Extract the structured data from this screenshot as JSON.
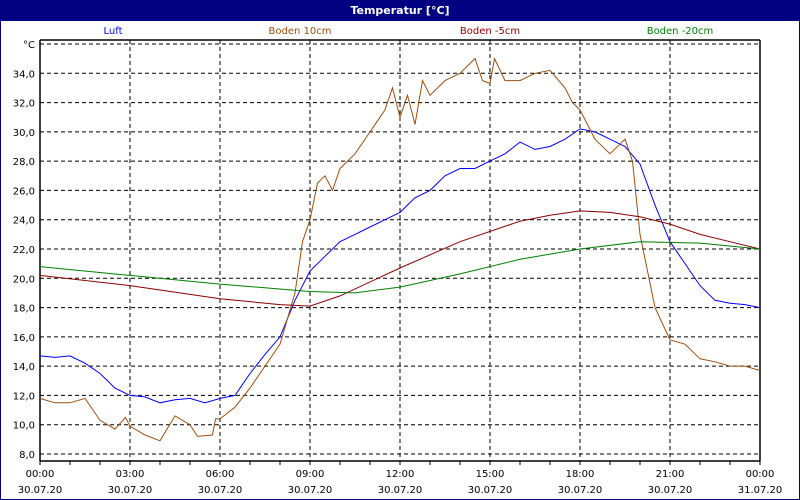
{
  "window": {
    "title": "Temperatur [°C]"
  },
  "chart_data": {
    "type": "line",
    "title": "Temperatur [°C]",
    "ylabel": "°C",
    "ylim": [
      8,
      36
    ],
    "yticks": [
      "8,0",
      "10,0",
      "12,0",
      "14,0",
      "16,0",
      "18,0",
      "20,0",
      "22,0",
      "24,0",
      "26,0",
      "28,0",
      "30,0",
      "32,0",
      "34,0"
    ],
    "xlim_hours": [
      0,
      24
    ],
    "xticks": [
      {
        "time": "00:00",
        "date": "30.07.20"
      },
      {
        "time": "03:00",
        "date": "30.07.20"
      },
      {
        "time": "06:00",
        "date": "30.07.20"
      },
      {
        "time": "09:00",
        "date": "30.07.20"
      },
      {
        "time": "12:00",
        "date": "30.07.20"
      },
      {
        "time": "15:00",
        "date": "30.07.20"
      },
      {
        "time": "18:00",
        "date": "30.07.20"
      },
      {
        "time": "21:00",
        "date": "30.07.20"
      },
      {
        "time": "00:00",
        "date": "31.07.20"
      }
    ],
    "grid": true,
    "legend": "top",
    "series": [
      {
        "name": "Luft",
        "color": "#0000ff",
        "points": [
          [
            0,
            14.7
          ],
          [
            0.5,
            14.6
          ],
          [
            1,
            14.7
          ],
          [
            1.5,
            14.2
          ],
          [
            2,
            13.5
          ],
          [
            2.5,
            12.5
          ],
          [
            3,
            12.0
          ],
          [
            3.5,
            11.9
          ],
          [
            4,
            11.5
          ],
          [
            4.5,
            11.7
          ],
          [
            5,
            11.8
          ],
          [
            5.5,
            11.5
          ],
          [
            6,
            11.8
          ],
          [
            6.5,
            12.0
          ],
          [
            7,
            13.5
          ],
          [
            7.5,
            14.8
          ],
          [
            8,
            16.0
          ],
          [
            8.5,
            18.5
          ],
          [
            9,
            20.5
          ],
          [
            9.5,
            21.5
          ],
          [
            10,
            22.5
          ],
          [
            10.5,
            23.0
          ],
          [
            11,
            23.5
          ],
          [
            11.5,
            24.0
          ],
          [
            12,
            24.5
          ],
          [
            12.5,
            25.5
          ],
          [
            13,
            26.0
          ],
          [
            13.5,
            27.0
          ],
          [
            14,
            27.5
          ],
          [
            14.5,
            27.5
          ],
          [
            15,
            28.0
          ],
          [
            15.5,
            28.5
          ],
          [
            16,
            29.3
          ],
          [
            16.5,
            28.8
          ],
          [
            17,
            29.0
          ],
          [
            17.5,
            29.5
          ],
          [
            18,
            30.2
          ],
          [
            18.5,
            30.0
          ],
          [
            19,
            29.5
          ],
          [
            19.5,
            29.0
          ],
          [
            20,
            27.8
          ],
          [
            20.5,
            25.0
          ],
          [
            21,
            22.5
          ],
          [
            21.5,
            21.0
          ],
          [
            22,
            19.5
          ],
          [
            22.5,
            18.5
          ],
          [
            23,
            18.3
          ],
          [
            23.5,
            18.2
          ],
          [
            24,
            18.0
          ]
        ]
      },
      {
        "name": "Boden 10cm",
        "color": "#9b4f0f",
        "points": [
          [
            0,
            11.8
          ],
          [
            0.5,
            11.5
          ],
          [
            1,
            11.5
          ],
          [
            1.5,
            11.8
          ],
          [
            2,
            10.3
          ],
          [
            2.5,
            9.7
          ],
          [
            2.85,
            10.5
          ],
          [
            3,
            9.9
          ],
          [
            3.5,
            9.3
          ],
          [
            4,
            8.9
          ],
          [
            4.5,
            10.6
          ],
          [
            5,
            10.0
          ],
          [
            5.25,
            9.2
          ],
          [
            5.75,
            9.3
          ],
          [
            5.85,
            10.4
          ],
          [
            6,
            10.4
          ],
          [
            6.5,
            11.2
          ],
          [
            7,
            12.5
          ],
          [
            7.5,
            14.0
          ],
          [
            8,
            15.5
          ],
          [
            8.5,
            19.0
          ],
          [
            8.75,
            22.5
          ],
          [
            9,
            24.0
          ],
          [
            9.25,
            26.5
          ],
          [
            9.5,
            27.0
          ],
          [
            9.75,
            26.0
          ],
          [
            10,
            27.5
          ],
          [
            10.5,
            28.5
          ],
          [
            11,
            30.0
          ],
          [
            11.5,
            31.5
          ],
          [
            11.75,
            33.0
          ],
          [
            12,
            31.0
          ],
          [
            12.25,
            32.5
          ],
          [
            12.5,
            30.5
          ],
          [
            12.75,
            33.5
          ],
          [
            13,
            32.5
          ],
          [
            13.5,
            33.5
          ],
          [
            14,
            34.0
          ],
          [
            14.5,
            35.0
          ],
          [
            14.75,
            33.5
          ],
          [
            15,
            33.3
          ],
          [
            15.15,
            35.0
          ],
          [
            15.5,
            33.5
          ],
          [
            16,
            33.5
          ],
          [
            16.5,
            34.0
          ],
          [
            17,
            34.2
          ],
          [
            17.5,
            33.0
          ],
          [
            17.75,
            32.0
          ],
          [
            18,
            31.5
          ],
          [
            18.5,
            29.5
          ],
          [
            19,
            28.5
          ],
          [
            19.5,
            29.5
          ],
          [
            19.75,
            28.0
          ],
          [
            20,
            23.0
          ],
          [
            20.5,
            18.0
          ],
          [
            21,
            15.8
          ],
          [
            21.5,
            15.5
          ],
          [
            22,
            14.5
          ],
          [
            22.5,
            14.3
          ],
          [
            23,
            14.0
          ],
          [
            23.5,
            14.0
          ],
          [
            24,
            13.7
          ]
        ]
      },
      {
        "name": "Boden -5cm",
        "color": "#8b0000",
        "points": [
          [
            0,
            20.2
          ],
          [
            3,
            19.5
          ],
          [
            6,
            18.6
          ],
          [
            8,
            18.2
          ],
          [
            9,
            18.1
          ],
          [
            10,
            18.8
          ],
          [
            12,
            20.7
          ],
          [
            14,
            22.5
          ],
          [
            16,
            23.9
          ],
          [
            17,
            24.3
          ],
          [
            18,
            24.6
          ],
          [
            19,
            24.5
          ],
          [
            20,
            24.2
          ],
          [
            21,
            23.7
          ],
          [
            22,
            23.0
          ],
          [
            23,
            22.5
          ],
          [
            24,
            22.0
          ]
        ]
      },
      {
        "name": "Boden -20cm",
        "color": "#008000",
        "points": [
          [
            0,
            20.8
          ],
          [
            3,
            20.2
          ],
          [
            6,
            19.6
          ],
          [
            9,
            19.1
          ],
          [
            10.5,
            19.0
          ],
          [
            12,
            19.4
          ],
          [
            14,
            20.3
          ],
          [
            16,
            21.3
          ],
          [
            18,
            22.0
          ],
          [
            20,
            22.5
          ],
          [
            22,
            22.4
          ],
          [
            24,
            22.0
          ]
        ]
      }
    ]
  }
}
